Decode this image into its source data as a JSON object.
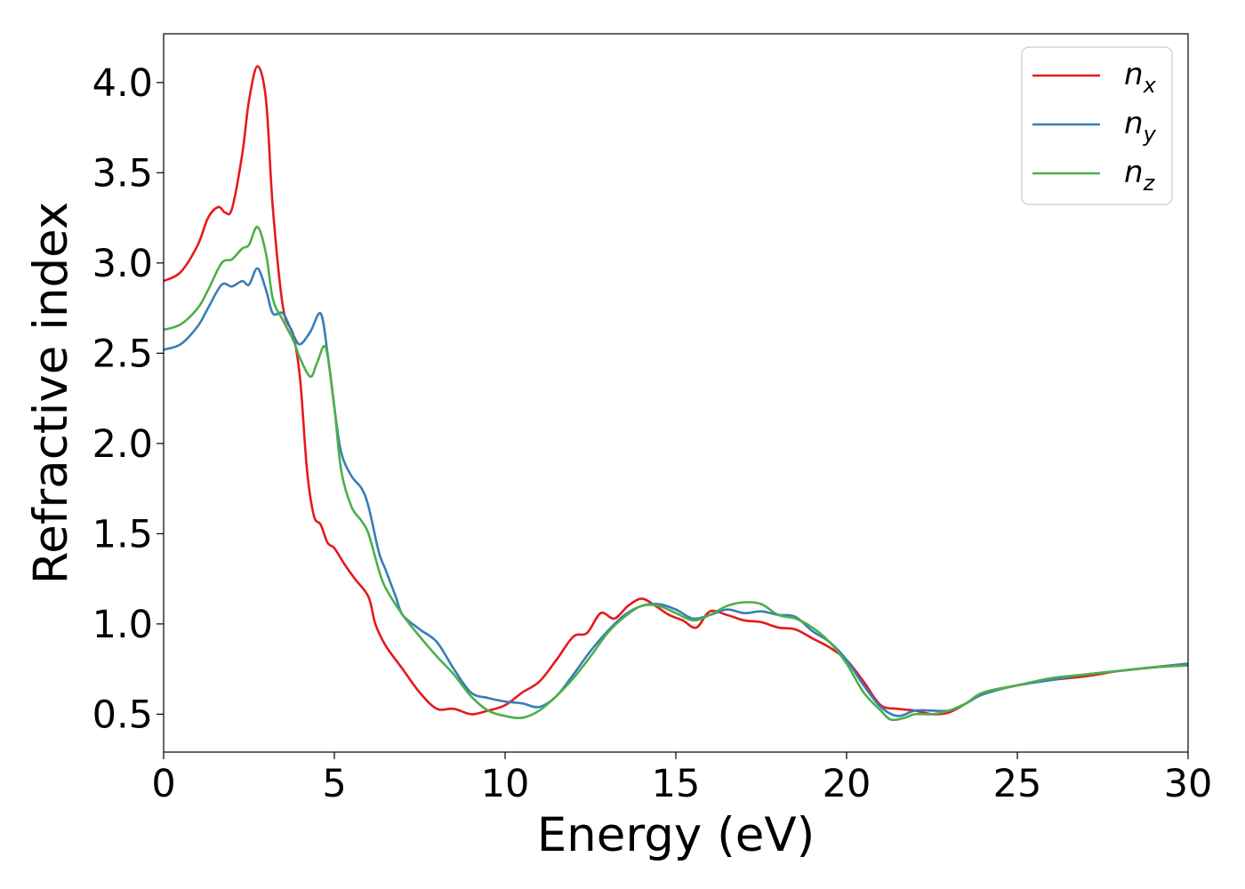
{
  "chart_data": {
    "type": "line",
    "xlabel": "Energy (eV)",
    "ylabel": "Refractive index",
    "xlim": [
      0,
      30
    ],
    "ylim": [
      0.29,
      4.27
    ],
    "xticks": [
      "0",
      "5",
      "10",
      "15",
      "20",
      "25",
      "30"
    ],
    "yticks": [
      "0.5",
      "1.0",
      "1.5",
      "2.0",
      "2.5",
      "3.0",
      "3.5",
      "4.0"
    ],
    "legend_position": "top-right",
    "grid": false,
    "series": [
      {
        "name": "n",
        "subscript": "x",
        "color": "#e41a1c",
        "x": [
          0,
          0.5,
          1.0,
          1.3,
          1.6,
          1.8,
          2.0,
          2.3,
          2.5,
          2.75,
          3.0,
          3.2,
          3.5,
          3.8,
          4.0,
          4.2,
          4.4,
          4.6,
          4.8,
          5.0,
          5.3,
          5.6,
          6.0,
          6.2,
          6.5,
          7.0,
          7.5,
          8.0,
          8.5,
          9.0,
          9.5,
          10.0,
          10.5,
          11.0,
          11.5,
          12.0,
          12.4,
          12.8,
          13.2,
          13.6,
          14.0,
          14.4,
          14.8,
          15.2,
          15.6,
          16.0,
          16.5,
          17.0,
          17.5,
          18.0,
          18.5,
          19.0,
          19.5,
          20.0,
          20.5,
          21.0,
          21.5,
          22.0,
          22.5,
          23.0,
          23.5,
          24.0,
          25.0,
          26.0,
          27.0,
          28.0,
          29.0,
          30.0
        ],
        "values": [
          2.9,
          2.95,
          3.1,
          3.25,
          3.31,
          3.28,
          3.3,
          3.6,
          3.9,
          4.09,
          3.9,
          3.3,
          2.75,
          2.6,
          2.35,
          1.85,
          1.6,
          1.55,
          1.45,
          1.42,
          1.33,
          1.25,
          1.15,
          1.0,
          0.88,
          0.75,
          0.62,
          0.53,
          0.53,
          0.5,
          0.52,
          0.55,
          0.62,
          0.68,
          0.8,
          0.93,
          0.95,
          1.06,
          1.03,
          1.1,
          1.14,
          1.1,
          1.05,
          1.02,
          0.98,
          1.07,
          1.05,
          1.02,
          1.01,
          0.98,
          0.97,
          0.92,
          0.87,
          0.8,
          0.68,
          0.55,
          0.53,
          0.52,
          0.5,
          0.51,
          0.56,
          0.62,
          0.66,
          0.69,
          0.71,
          0.74,
          0.76,
          0.78
        ]
      },
      {
        "name": "n",
        "subscript": "y",
        "color": "#377eb8",
        "x": [
          0,
          0.5,
          1.0,
          1.3,
          1.7,
          2.0,
          2.3,
          2.5,
          2.75,
          3.0,
          3.2,
          3.5,
          3.8,
          4.0,
          4.3,
          4.6,
          4.8,
          5.0,
          5.2,
          5.5,
          5.8,
          6.0,
          6.3,
          6.5,
          6.8,
          7.0,
          7.5,
          8.0,
          8.5,
          9.0,
          9.5,
          10.0,
          10.5,
          11.0,
          11.5,
          12.0,
          12.5,
          13.0,
          13.5,
          14.0,
          14.5,
          15.0,
          15.5,
          16.0,
          16.5,
          17.0,
          17.5,
          18.0,
          18.5,
          19.0,
          19.5,
          20.0,
          20.5,
          21.0,
          21.5,
          22.0,
          22.5,
          23.0,
          23.5,
          24.0,
          25.0,
          26.0,
          27.0,
          28.0,
          29.0,
          30.0
        ],
        "values": [
          2.52,
          2.55,
          2.65,
          2.75,
          2.88,
          2.87,
          2.9,
          2.88,
          2.97,
          2.85,
          2.72,
          2.72,
          2.6,
          2.55,
          2.62,
          2.72,
          2.5,
          2.2,
          1.95,
          1.82,
          1.75,
          1.65,
          1.4,
          1.3,
          1.15,
          1.05,
          0.97,
          0.9,
          0.75,
          0.62,
          0.59,
          0.57,
          0.56,
          0.54,
          0.6,
          0.72,
          0.85,
          0.96,
          1.05,
          1.1,
          1.11,
          1.08,
          1.03,
          1.05,
          1.08,
          1.06,
          1.07,
          1.05,
          1.04,
          0.96,
          0.9,
          0.8,
          0.66,
          0.54,
          0.49,
          0.52,
          0.52,
          0.52,
          0.56,
          0.61,
          0.66,
          0.69,
          0.72,
          0.74,
          0.76,
          0.78
        ]
      },
      {
        "name": "n",
        "subscript": "z",
        "color": "#4daf4a",
        "x": [
          0,
          0.5,
          1.0,
          1.3,
          1.7,
          2.0,
          2.3,
          2.5,
          2.75,
          3.0,
          3.2,
          3.5,
          3.8,
          4.0,
          4.3,
          4.5,
          4.75,
          5.0,
          5.2,
          5.5,
          5.8,
          6.0,
          6.3,
          6.5,
          7.0,
          7.5,
          8.0,
          8.5,
          9.0,
          9.5,
          10.0,
          10.5,
          11.0,
          11.5,
          12.0,
          12.5,
          13.0,
          13.5,
          14.0,
          14.5,
          15.0,
          15.5,
          16.0,
          16.5,
          17.0,
          17.5,
          18.0,
          18.5,
          19.0,
          19.5,
          20.0,
          20.5,
          21.0,
          21.3,
          21.7,
          22.0,
          22.5,
          23.0,
          23.5,
          24.0,
          25.0,
          26.0,
          27.0,
          28.0,
          29.0,
          30.0
        ],
        "values": [
          2.63,
          2.66,
          2.75,
          2.85,
          3.0,
          3.02,
          3.08,
          3.1,
          3.2,
          3.05,
          2.8,
          2.68,
          2.57,
          2.47,
          2.37,
          2.45,
          2.53,
          2.2,
          1.85,
          1.65,
          1.57,
          1.5,
          1.3,
          1.2,
          1.05,
          0.93,
          0.82,
          0.72,
          0.6,
          0.52,
          0.49,
          0.48,
          0.52,
          0.6,
          0.7,
          0.82,
          0.95,
          1.04,
          1.1,
          1.1,
          1.06,
          1.02,
          1.05,
          1.1,
          1.12,
          1.11,
          1.05,
          1.03,
          0.98,
          0.9,
          0.78,
          0.62,
          0.52,
          0.47,
          0.48,
          0.5,
          0.5,
          0.52,
          0.56,
          0.62,
          0.66,
          0.7,
          0.72,
          0.74,
          0.76,
          0.77
        ]
      }
    ]
  }
}
